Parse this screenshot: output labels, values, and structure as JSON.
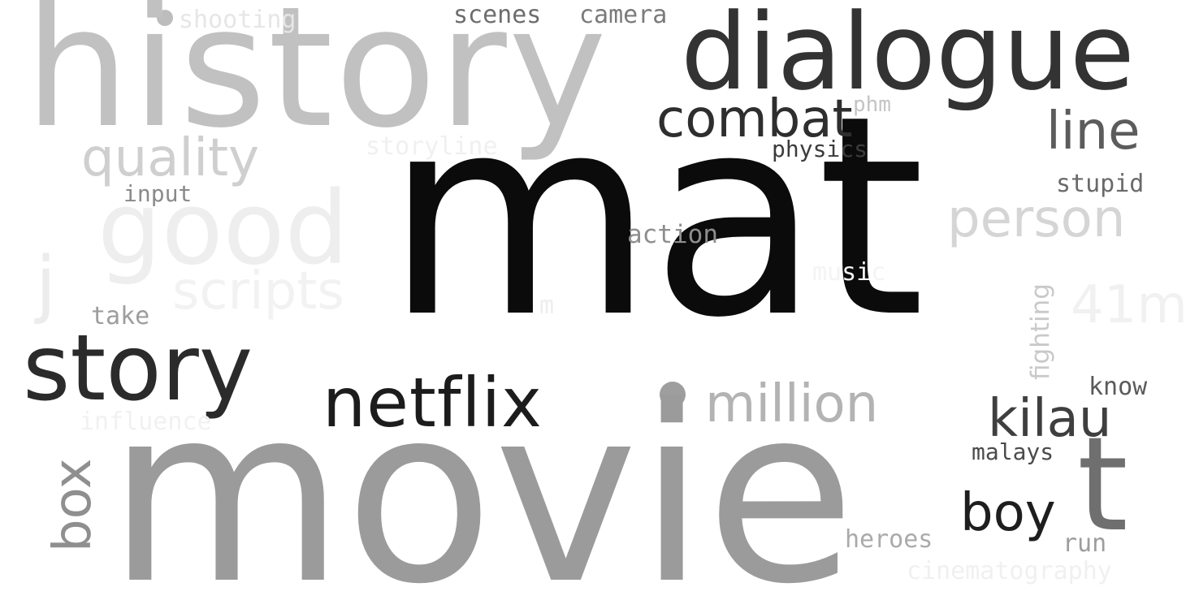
{
  "word_cloud": {
    "words": [
      {
        "key": "mat",
        "text": "mat",
        "color": "#0b0b0b"
      },
      {
        "key": "movie",
        "text": "movie",
        "color": "#9b9b9b"
      },
      {
        "key": "history",
        "text": "history",
        "color": "#c1c1c1"
      },
      {
        "key": "dialogue",
        "text": "dialogue",
        "color": "#333333"
      },
      {
        "key": "story",
        "text": "story",
        "color": "#2b2b2b"
      },
      {
        "key": "netflix",
        "text": "netflix",
        "color": "#1c1c1c"
      },
      {
        "key": "good",
        "text": "good",
        "color": "#eeeeee"
      },
      {
        "key": "combat",
        "text": "combat",
        "color": "#2e2e2e"
      },
      {
        "key": "quality",
        "text": "quality",
        "color": "#cfcfcf"
      },
      {
        "key": "scripts",
        "text": "scripts",
        "color": "#f2f2f2"
      },
      {
        "key": "million",
        "text": "million",
        "color": "#b3b3b3"
      },
      {
        "key": "person",
        "text": "person",
        "color": "#d5d5d5"
      },
      {
        "key": "kilau",
        "text": "kilau",
        "color": "#3f3f3f"
      },
      {
        "key": "line",
        "text": "line",
        "color": "#5c5c5c"
      },
      {
        "key": "t",
        "text": "t",
        "color": "#6f6f6f"
      },
      {
        "key": "boy",
        "text": "boy",
        "color": "#1e1e1e"
      },
      {
        "key": "box",
        "text": "box",
        "color": "#8f8f8f"
      },
      {
        "key": "j",
        "text": "j",
        "color": "#ececec"
      },
      {
        "key": "41m",
        "text": "41m",
        "color": "#f1f1f1"
      },
      {
        "key": "fighting",
        "text": "fighting",
        "color": "#c9c9c9"
      },
      {
        "key": "action",
        "text": "action",
        "color": "#8e8e8e"
      },
      {
        "key": "physics",
        "text": "physics",
        "color": "#3c3c3c"
      },
      {
        "key": "stupid",
        "text": "stupid",
        "color": "#6a6a6a"
      },
      {
        "key": "phm",
        "text": "phm",
        "color": "#c4c4c4"
      },
      {
        "key": "scenes",
        "text": "scenes",
        "color": "#6d6d6d"
      },
      {
        "key": "camera",
        "text": "camera",
        "color": "#7b7b7b"
      },
      {
        "key": "shooting",
        "text": "shooting",
        "color": "#e6e6e6"
      },
      {
        "key": "storyline",
        "text": "storyline",
        "color": "#f0f0f0"
      },
      {
        "key": "input",
        "text": "input",
        "color": "#8a8a8a"
      },
      {
        "key": "take",
        "text": "take",
        "color": "#9d9d9d"
      },
      {
        "key": "influence",
        "text": "influence",
        "color": "#f1f1f1"
      },
      {
        "key": "heroes",
        "text": "heroes",
        "color": "#aaaaaa"
      },
      {
        "key": "run",
        "text": "run",
        "color": "#9d9d9d"
      },
      {
        "key": "cinematography",
        "text": "cinematography",
        "color": "#f0f0f0"
      },
      {
        "key": "malays",
        "text": "malays",
        "color": "#4b4b4b"
      },
      {
        "key": "know",
        "text": "know",
        "color": "#5a5a5a"
      },
      {
        "key": "music",
        "text": "music",
        "color": "#f4f4f4"
      },
      {
        "key": "m",
        "text": "m",
        "color": "#eeeeee"
      }
    ]
  }
}
